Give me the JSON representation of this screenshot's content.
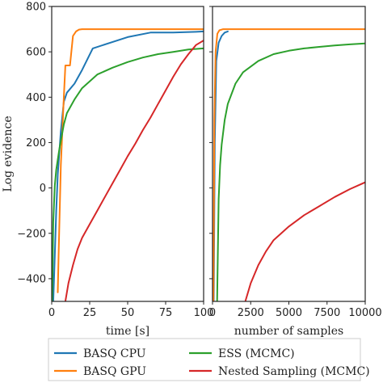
{
  "chart_data": [
    {
      "type": "line",
      "xlabel": "time [s]",
      "ylabel": "Log evidence",
      "xlim": [
        0,
        100
      ],
      "ylim": [
        -500,
        800
      ],
      "xticks": [
        0,
        25,
        50,
        75,
        100
      ],
      "yticks": [
        -400,
        -200,
        0,
        200,
        400,
        600,
        800
      ],
      "grid": false,
      "series": [
        {
          "name": "BASQ CPU",
          "color": "#1f77b4",
          "x": [
            1,
            2,
            3,
            4,
            6,
            8,
            10,
            15,
            20,
            27,
            50,
            65,
            80,
            95,
            100
          ],
          "y": [
            -500,
            -300,
            -100,
            60,
            250,
            380,
            420,
            460,
            520,
            615,
            665,
            685,
            685,
            688,
            690
          ]
        },
        {
          "name": "BASQ GPU",
          "color": "#ff7f0e",
          "x": [
            4,
            4.5,
            6,
            8,
            9,
            10,
            12,
            14,
            16,
            18,
            20,
            30,
            60,
            100
          ],
          "y": [
            -460,
            -300,
            100,
            400,
            540,
            540,
            540,
            670,
            690,
            698,
            700,
            700,
            700,
            700
          ],
          "start_bottom": true
        },
        {
          "name": "ESS (MCMC)",
          "color": "#2ca02c",
          "x": [
            0.3,
            1,
            2,
            3,
            5,
            8,
            10,
            15,
            20,
            30,
            40,
            50,
            60,
            70,
            80,
            90,
            100
          ],
          "y": [
            -500,
            -150,
            10,
            80,
            170,
            280,
            330,
            390,
            440,
            500,
            530,
            555,
            575,
            590,
            600,
            610,
            615
          ]
        },
        {
          "name": "Nested Sampling (MCMC)",
          "color": "#d62728",
          "x": [
            9,
            11,
            14,
            17,
            20,
            25,
            30,
            35,
            40,
            45,
            50,
            55,
            60,
            65,
            70,
            75,
            80,
            85,
            90,
            95,
            100
          ],
          "y": [
            -500,
            -420,
            -340,
            -270,
            -220,
            -160,
            -100,
            -40,
            20,
            80,
            140,
            195,
            255,
            310,
            370,
            430,
            490,
            545,
            590,
            630,
            650
          ]
        }
      ]
    },
    {
      "type": "line",
      "xlabel": "number of samples",
      "ylabel": "",
      "xlim": [
        0,
        10000
      ],
      "ylim": [
        -500,
        800
      ],
      "xticks": [
        0,
        2500,
        5000,
        7500,
        10000
      ],
      "grid": false,
      "series": [
        {
          "name": "BASQ CPU",
          "color": "#1f77b4",
          "x": [
            80,
            150,
            250,
            400,
            600,
            800,
            1000
          ],
          "y": [
            -500,
            200,
            560,
            640,
            670,
            685,
            690
          ]
        },
        {
          "name": "BASQ GPU",
          "color": "#ff7f0e",
          "x": [
            60,
            120,
            200,
            320,
            450,
            700,
            1000,
            2000,
            5000,
            10000
          ],
          "y": [
            -500,
            300,
            600,
            680,
            695,
            700,
            700,
            700,
            700,
            700
          ]
        },
        {
          "name": "ESS (MCMC)",
          "color": "#2ca02c",
          "x": [
            300,
            400,
            500,
            600,
            800,
            1000,
            1500,
            2000,
            3000,
            4000,
            5000,
            6000,
            7000,
            8000,
            9000,
            10000
          ],
          "y": [
            -500,
            -50,
            100,
            190,
            300,
            370,
            460,
            510,
            560,
            590,
            605,
            615,
            622,
            628,
            633,
            637
          ]
        },
        {
          "name": "Nested Sampling (MCMC)",
          "color": "#d62728",
          "x": [
            2150,
            2500,
            3000,
            3500,
            4000,
            5000,
            6000,
            7000,
            8000,
            9000,
            10000
          ],
          "y": [
            -500,
            -420,
            -340,
            -280,
            -230,
            -170,
            -120,
            -80,
            -40,
            -5,
            25
          ]
        }
      ]
    }
  ],
  "legend": {
    "placement": "bottom",
    "entries": [
      {
        "label": "BASQ CPU",
        "color": "#1f77b4"
      },
      {
        "label": "BASQ GPU",
        "color": "#ff7f0e"
      },
      {
        "label": "ESS (MCMC)",
        "color": "#2ca02c"
      },
      {
        "label": "Nested Sampling (MCMC)",
        "color": "#d62728"
      }
    ]
  }
}
